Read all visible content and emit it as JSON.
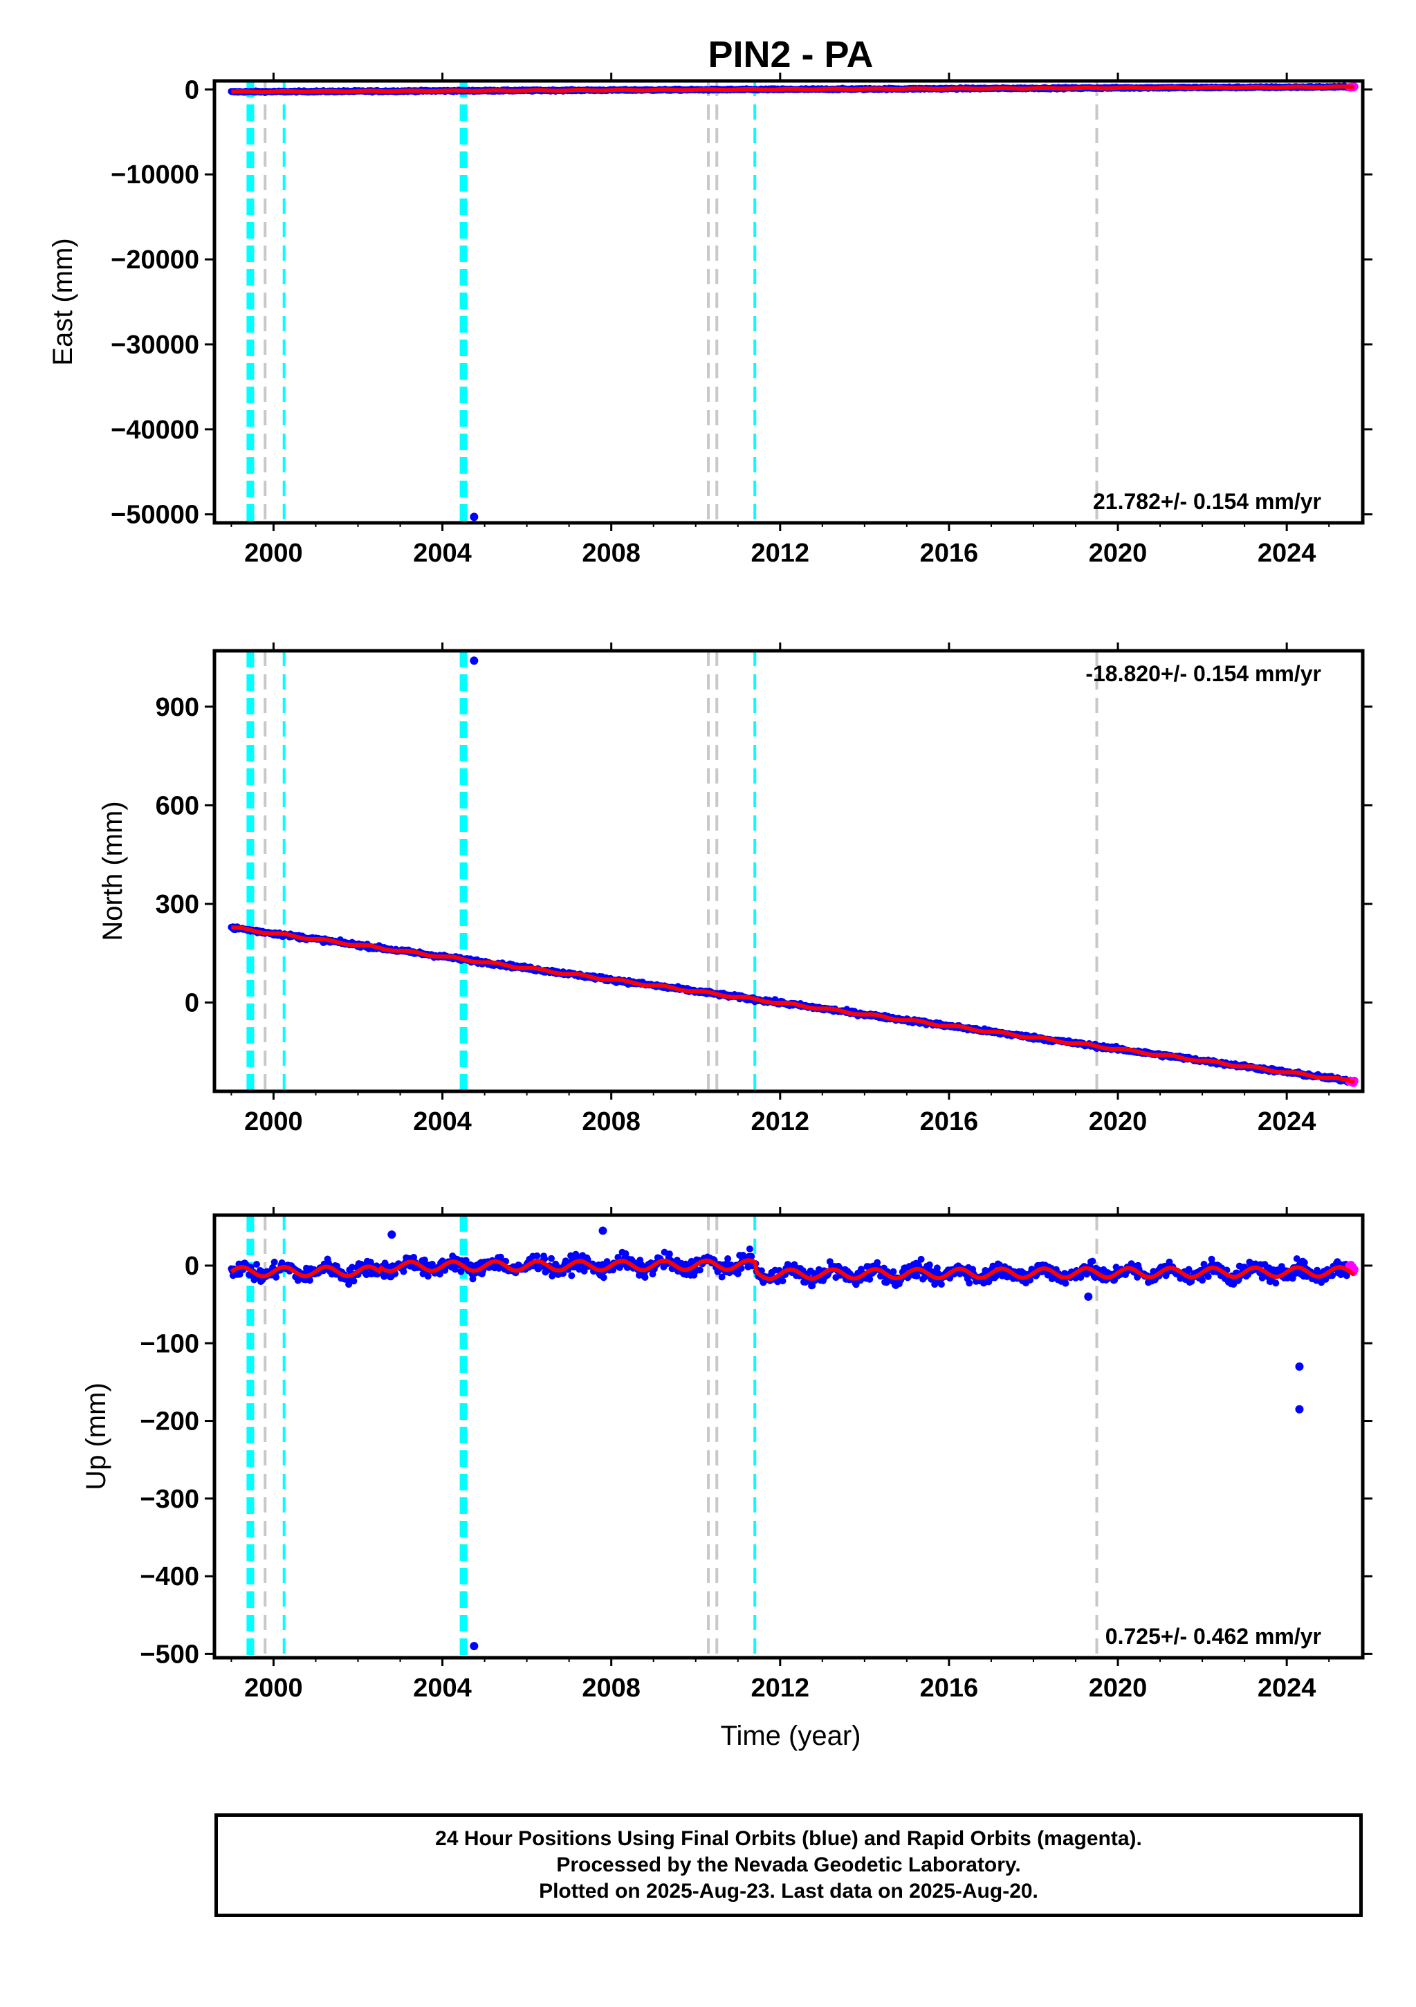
{
  "title": "PIN2 - PA",
  "x_axis_label": "Time (year)",
  "colors": {
    "final_orbits": "#0000ff",
    "rapid_orbits": "#ff00ff",
    "model": "#ff0000",
    "equipment_change": "#c8c8c8",
    "earthquake": "#00ffff"
  },
  "footer": {
    "line1": "24 Hour Positions Using Final Orbits (blue) and Rapid Orbits (magenta).",
    "line2": "Processed by the Nevada Geodetic Laboratory.",
    "line3": "Plotted on 2025-Aug-23. Last data on 2025-Aug-20."
  },
  "chart_data": [
    {
      "type": "scatter",
      "panel": "east",
      "ylabel": "East (mm)",
      "xlim": [
        1998.6,
        2025.8
      ],
      "ylim": [
        -51000,
        1000
      ],
      "xticks": [
        2000,
        2004,
        2008,
        2012,
        2016,
        2020,
        2024
      ],
      "yticks": [
        0,
        -10000,
        -20000,
        -30000,
        -40000,
        -50000
      ],
      "ytick_labels": [
        "0",
        "−10000",
        "−20000",
        "−30000",
        "−40000",
        "−50000"
      ],
      "rate_label": "21.782+/- 0.154 mm/yr",
      "rate_position": "bottom-right",
      "series_trend": {
        "t_start": 1999.0,
        "t_end": 2025.6,
        "v_start": -280,
        "v_end": 300
      },
      "outliers": [
        {
          "x": 2004.75,
          "y": -50300
        }
      ],
      "vertical_lines": [
        {
          "x": 1999.45,
          "kind": "earthquake-thick"
        },
        {
          "x": 1999.8,
          "kind": "equipment"
        },
        {
          "x": 2000.25,
          "kind": "earthquake"
        },
        {
          "x": 2004.5,
          "kind": "earthquake-thick"
        },
        {
          "x": 2010.3,
          "kind": "equipment"
        },
        {
          "x": 2010.5,
          "kind": "equipment"
        },
        {
          "x": 2011.4,
          "kind": "earthquake"
        },
        {
          "x": 2019.5,
          "kind": "equipment"
        }
      ]
    },
    {
      "type": "scatter",
      "panel": "north",
      "ylabel": "North (mm)",
      "xlim": [
        1998.6,
        2025.8
      ],
      "ylim": [
        -270,
        1070
      ],
      "xticks": [
        2000,
        2004,
        2008,
        2012,
        2016,
        2020,
        2024
      ],
      "yticks": [
        0,
        300,
        600,
        900
      ],
      "ytick_labels": [
        "0",
        "300",
        "600",
        "900"
      ],
      "rate_label": "-18.820+/- 0.154 mm/yr",
      "rate_position": "top-right",
      "series_trend": {
        "t_start": 1999.0,
        "t_end": 2025.6,
        "v_start": 228,
        "v_end": -240
      },
      "outliers": [
        {
          "x": 2004.75,
          "y": 1040
        }
      ],
      "vertical_lines": [
        {
          "x": 1999.45,
          "kind": "earthquake-thick"
        },
        {
          "x": 1999.8,
          "kind": "equipment"
        },
        {
          "x": 2000.25,
          "kind": "earthquake"
        },
        {
          "x": 2004.5,
          "kind": "earthquake-thick"
        },
        {
          "x": 2010.3,
          "kind": "equipment"
        },
        {
          "x": 2010.5,
          "kind": "equipment"
        },
        {
          "x": 2011.4,
          "kind": "earthquake"
        },
        {
          "x": 2019.5,
          "kind": "equipment"
        }
      ]
    },
    {
      "type": "scatter",
      "panel": "up",
      "ylabel": "Up (mm)",
      "xlim": [
        1998.6,
        2025.8
      ],
      "ylim": [
        -505,
        65
      ],
      "xticks": [
        2000,
        2004,
        2008,
        2012,
        2016,
        2020,
        2024
      ],
      "yticks": [
        0,
        -100,
        -200,
        -300,
        -400,
        -500
      ],
      "ytick_labels": [
        "0",
        "−100",
        "−200",
        "−300",
        "−400",
        "−500"
      ],
      "rate_label": "0.725+/- 0.462 mm/yr",
      "rate_position": "bottom-right",
      "series_trend": {
        "t_start": 1999.0,
        "t_end": 2025.6,
        "v_start": -8,
        "v_end": -2
      },
      "outliers": [
        {
          "x": 2004.75,
          "y": -490
        },
        {
          "x": 2024.3,
          "y": -130
        },
        {
          "x": 2024.3,
          "y": -185
        },
        {
          "x": 2002.8,
          "y": 40
        },
        {
          "x": 2007.8,
          "y": 45
        },
        {
          "x": 2019.3,
          "y": -40
        }
      ],
      "vertical_lines": [
        {
          "x": 1999.45,
          "kind": "earthquake-thick"
        },
        {
          "x": 1999.8,
          "kind": "equipment"
        },
        {
          "x": 2000.25,
          "kind": "earthquake"
        },
        {
          "x": 2004.5,
          "kind": "earthquake-thick"
        },
        {
          "x": 2010.3,
          "kind": "equipment"
        },
        {
          "x": 2010.5,
          "kind": "equipment"
        },
        {
          "x": 2011.4,
          "kind": "earthquake"
        },
        {
          "x": 2019.5,
          "kind": "equipment"
        }
      ]
    }
  ]
}
